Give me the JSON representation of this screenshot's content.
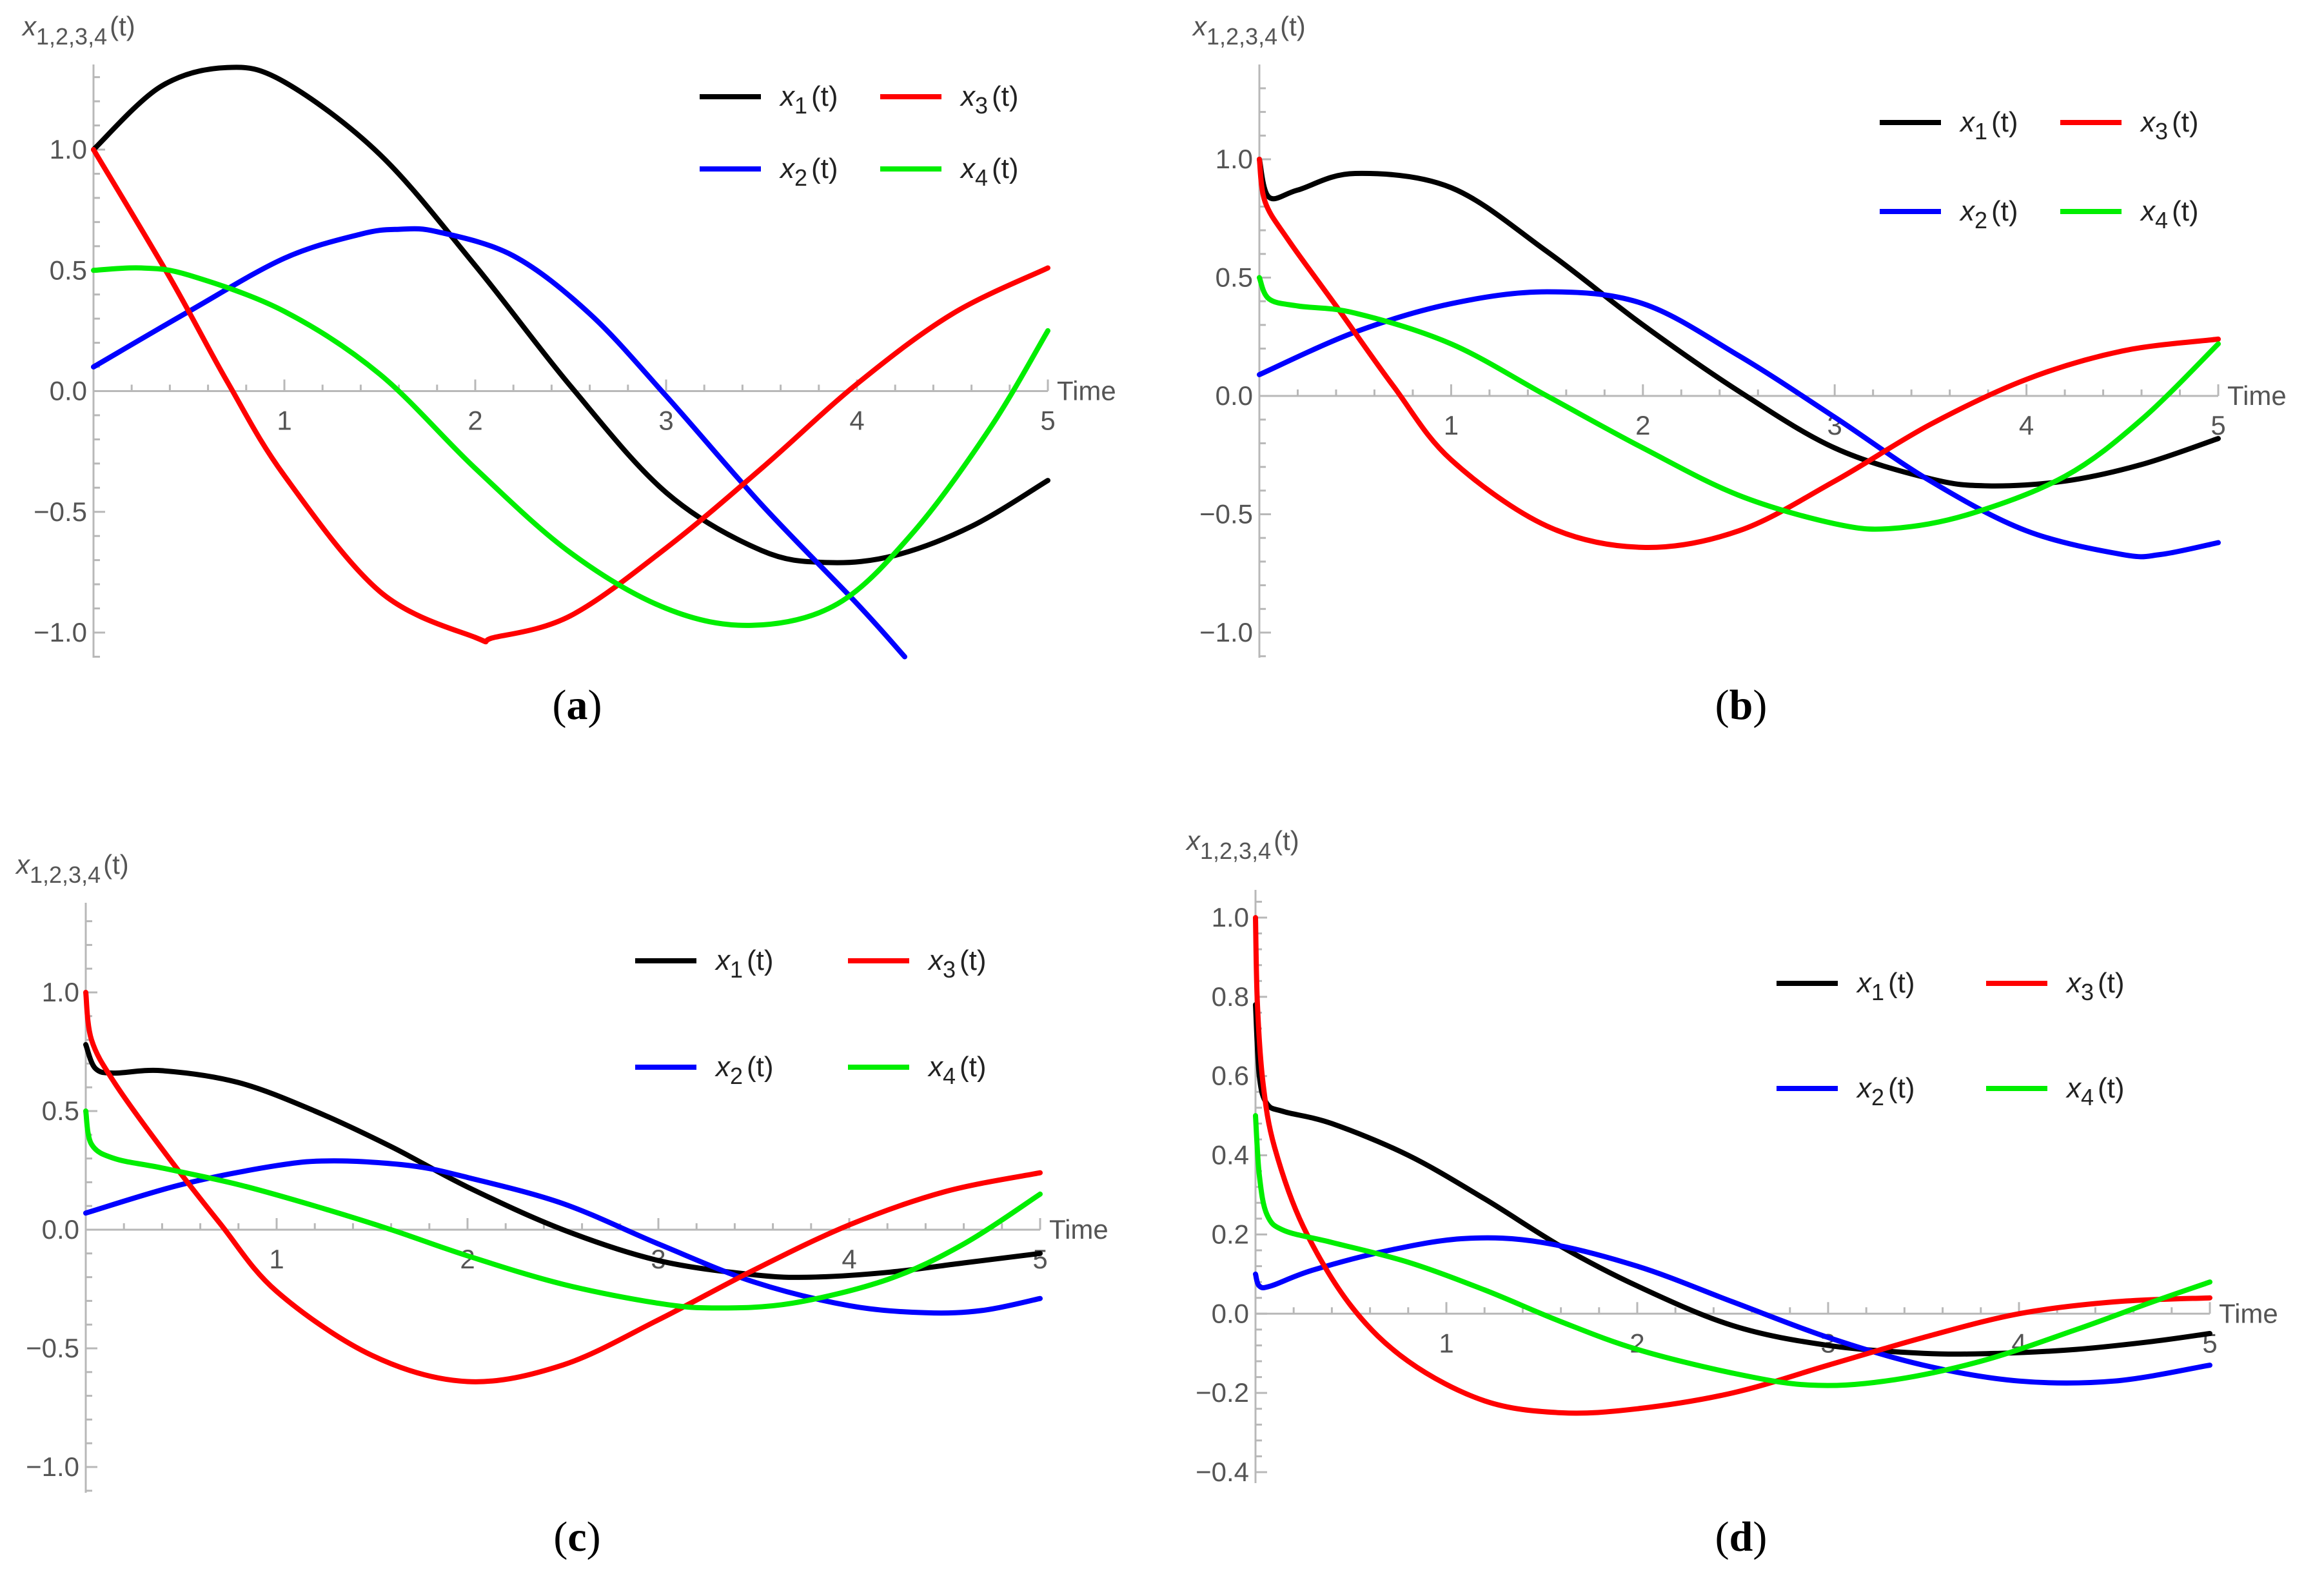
{
  "figure": {
    "description_labels": [
      "(a)",
      "(b)",
      "(c)",
      "(d)"
    ]
  },
  "chart_data": [
    {
      "type": "line",
      "panel_label": "(a)",
      "ylabel": "x1,2,3,4(t)",
      "xlabel": "Time",
      "xlim": [
        0,
        5
      ],
      "ylim": [
        -1.1,
        1.4
      ],
      "xticks": [
        1,
        2,
        3,
        4,
        5
      ],
      "xtick_labels": [
        "1",
        "2",
        "3",
        "4",
        "5"
      ],
      "yticks": [
        -1.0,
        -0.5,
        0.0,
        0.5,
        1.0
      ],
      "ytick_labels": [
        "−1.0",
        "−0.5",
        "0.0",
        "0.5",
        "1.0"
      ],
      "legend": [
        {
          "base": "x",
          "sub": "1",
          "suffix": "(t)",
          "color": "#000000"
        },
        {
          "base": "x",
          "sub": "3",
          "suffix": "(t)",
          "color": "#ff0000"
        },
        {
          "base": "x",
          "sub": "2",
          "suffix": "(t)",
          "color": "#0000ff"
        },
        {
          "base": "x",
          "sub": "4",
          "suffix": "(t)",
          "color": "#00ee00"
        }
      ],
      "series": [
        {
          "name": "x1(t)",
          "color": "#000000",
          "x": [
            0,
            0.35,
            0.7,
            1.0,
            1.5,
            2.0,
            2.5,
            3.0,
            3.5,
            3.85,
            4.2,
            4.6,
            5.0
          ],
          "y": [
            1.0,
            1.26,
            1.34,
            1.28,
            0.98,
            0.52,
            0.02,
            -0.42,
            -0.66,
            -0.71,
            -0.68,
            -0.56,
            -0.37
          ]
        },
        {
          "name": "x2(t)",
          "color": "#0000ff",
          "x": [
            0,
            0.5,
            1.0,
            1.4,
            1.6,
            1.8,
            2.2,
            2.6,
            3.0,
            3.5,
            4.0,
            4.25
          ],
          "y": [
            0.1,
            0.33,
            0.55,
            0.65,
            0.67,
            0.66,
            0.56,
            0.32,
            -0.02,
            -0.47,
            -0.88,
            -1.1
          ]
        },
        {
          "name": "x3(t)",
          "color": "#ff0000",
          "x": [
            0,
            0.4,
            0.7,
            1.0,
            1.5,
            2.0,
            2.1,
            2.5,
            3.0,
            3.5,
            4.0,
            4.5,
            5.0
          ],
          "y": [
            1.0,
            0.47,
            0.04,
            -0.35,
            -0.83,
            -1.02,
            -1.02,
            -0.93,
            -0.65,
            -0.32,
            0.03,
            0.32,
            0.51
          ]
        },
        {
          "name": "x4(t)",
          "color": "#00ee00",
          "x": [
            0,
            0.25,
            0.5,
            1.0,
            1.5,
            2.0,
            2.5,
            3.0,
            3.45,
            3.9,
            4.3,
            4.7,
            5.0
          ],
          "y": [
            0.5,
            0.51,
            0.48,
            0.33,
            0.07,
            -0.32,
            -0.67,
            -0.9,
            -0.97,
            -0.88,
            -0.58,
            -0.15,
            0.25
          ]
        }
      ]
    },
    {
      "type": "line",
      "panel_label": "(b)",
      "ylabel": "x1,2,3,4(t)",
      "xlabel": "Time",
      "xlim": [
        0,
        5
      ],
      "ylim": [
        -1.1,
        1.4
      ],
      "xticks": [
        1,
        2,
        3,
        4,
        5
      ],
      "xtick_labels": [
        "1",
        "2",
        "3",
        "4",
        "5"
      ],
      "yticks": [
        -1.0,
        -0.5,
        0.0,
        0.5,
        1.0
      ],
      "ytick_labels": [
        "−1.0",
        "−0.5",
        "0.0",
        "0.5",
        "1.0"
      ],
      "legend": [
        {
          "base": "x",
          "sub": "1",
          "suffix": "(t)",
          "color": "#000000"
        },
        {
          "base": "x",
          "sub": "3",
          "suffix": "(t)",
          "color": "#ff0000"
        },
        {
          "base": "x",
          "sub": "2",
          "suffix": "(t)",
          "color": "#0000ff"
        },
        {
          "base": "x",
          "sub": "4",
          "suffix": "(t)",
          "color": "#00ee00"
        }
      ],
      "series": [
        {
          "name": "x1(t)",
          "color": "#000000",
          "x": [
            0,
            0.05,
            0.2,
            0.5,
            1.0,
            1.5,
            2.0,
            2.5,
            3.0,
            3.5,
            3.8,
            4.2,
            4.6,
            5.0
          ],
          "y": [
            1.0,
            0.84,
            0.87,
            0.94,
            0.88,
            0.61,
            0.3,
            0.02,
            -0.22,
            -0.35,
            -0.38,
            -0.36,
            -0.29,
            -0.18
          ]
        },
        {
          "name": "x2(t)",
          "color": "#0000ff",
          "x": [
            0,
            0.5,
            1.0,
            1.5,
            2.0,
            2.5,
            3.0,
            3.5,
            4.0,
            4.5,
            4.7,
            5.0
          ],
          "y": [
            0.09,
            0.27,
            0.39,
            0.44,
            0.39,
            0.17,
            -0.09,
            -0.36,
            -0.57,
            -0.67,
            -0.67,
            -0.62
          ]
        },
        {
          "name": "x3(t)",
          "color": "#ff0000",
          "x": [
            0,
            0.03,
            0.15,
            0.4,
            0.7,
            1.0,
            1.5,
            2.0,
            2.5,
            3.0,
            3.5,
            4.0,
            4.5,
            5.0
          ],
          "y": [
            1.0,
            0.82,
            0.66,
            0.38,
            0.04,
            -0.27,
            -0.55,
            -0.64,
            -0.57,
            -0.36,
            -0.12,
            0.07,
            0.19,
            0.24
          ]
        },
        {
          "name": "x4(t)",
          "color": "#00ee00",
          "x": [
            0,
            0.05,
            0.2,
            0.5,
            1.0,
            1.5,
            2.0,
            2.5,
            3.0,
            3.3,
            3.7,
            4.2,
            4.6,
            5.0
          ],
          "y": [
            0.5,
            0.41,
            0.38,
            0.35,
            0.22,
            0.0,
            -0.22,
            -0.42,
            -0.54,
            -0.56,
            -0.5,
            -0.34,
            -0.1,
            0.22
          ]
        }
      ]
    },
    {
      "type": "line",
      "panel_label": "(c)",
      "ylabel": "x1,2,3,4(t)",
      "xlabel": "Time",
      "xlim": [
        0,
        5
      ],
      "ylim": [
        -1.1,
        1.4
      ],
      "xticks": [
        1,
        2,
        3,
        4,
        5
      ],
      "xtick_labels": [
        "1",
        "2",
        "3",
        "4",
        "5"
      ],
      "yticks": [
        -1.0,
        -0.5,
        0.0,
        0.5,
        1.0
      ],
      "ytick_labels": [
        "−1.0",
        "−0.5",
        "0.0",
        "0.5",
        "1.0"
      ],
      "legend": [
        {
          "base": "x",
          "sub": "1",
          "suffix": "(t)",
          "color": "#000000"
        },
        {
          "base": "x",
          "sub": "3",
          "suffix": "(t)",
          "color": "#ff0000"
        },
        {
          "base": "x",
          "sub": "2",
          "suffix": "(t)",
          "color": "#0000ff"
        },
        {
          "base": "x",
          "sub": "4",
          "suffix": "(t)",
          "color": "#00ee00"
        }
      ],
      "series": [
        {
          "name": "x1(t)",
          "color": "#000000",
          "x": [
            0,
            0.05,
            0.15,
            0.4,
            0.8,
            1.2,
            1.6,
            2.0,
            2.5,
            3.0,
            3.5,
            3.8,
            4.2,
            4.6,
            5.0
          ],
          "y": [
            0.78,
            0.68,
            0.66,
            0.67,
            0.62,
            0.5,
            0.35,
            0.18,
            0.0,
            -0.13,
            -0.19,
            -0.2,
            -0.18,
            -0.14,
            -0.1
          ]
        },
        {
          "name": "x2(t)",
          "color": "#0000ff",
          "x": [
            0,
            0.5,
            1.0,
            1.3,
            1.7,
            2.0,
            2.5,
            3.0,
            3.5,
            4.0,
            4.4,
            4.7,
            5.0
          ],
          "y": [
            0.07,
            0.19,
            0.27,
            0.29,
            0.27,
            0.22,
            0.11,
            -0.06,
            -0.22,
            -0.32,
            -0.35,
            -0.34,
            -0.29
          ]
        },
        {
          "name": "x3(t)",
          "color": "#ff0000",
          "x": [
            0,
            0.03,
            0.15,
            0.4,
            0.7,
            1.0,
            1.5,
            2.0,
            2.5,
            3.0,
            3.5,
            4.0,
            4.5,
            5.0
          ],
          "y": [
            1.0,
            0.8,
            0.62,
            0.34,
            0.03,
            -0.26,
            -0.53,
            -0.64,
            -0.57,
            -0.38,
            -0.17,
            0.02,
            0.16,
            0.24
          ]
        },
        {
          "name": "x4(t)",
          "color": "#00ee00",
          "x": [
            0,
            0.03,
            0.15,
            0.4,
            0.8,
            1.2,
            1.6,
            2.0,
            2.5,
            3.0,
            3.3,
            3.7,
            4.2,
            4.6,
            5.0
          ],
          "y": [
            0.5,
            0.36,
            0.3,
            0.26,
            0.19,
            0.1,
            0.0,
            -0.11,
            -0.23,
            -0.31,
            -0.33,
            -0.31,
            -0.21,
            -0.06,
            0.15
          ]
        }
      ]
    },
    {
      "type": "line",
      "panel_label": "(d)",
      "ylabel": "x1,2,3,4(t)",
      "xlabel": "Time",
      "xlim": [
        0,
        5
      ],
      "ylim": [
        -0.4,
        1.1
      ],
      "xticks": [
        1,
        2,
        3,
        4,
        5
      ],
      "xtick_labels": [
        "1",
        "2",
        "3",
        "4",
        "5"
      ],
      "yticks": [
        -0.4,
        -0.2,
        0.0,
        0.2,
        0.4,
        0.6,
        0.8,
        1.0
      ],
      "ytick_labels": [
        "−0.4",
        "−0.2",
        "0.0",
        "0.2",
        "0.4",
        "0.6",
        "0.8",
        "1.0"
      ],
      "legend": [
        {
          "base": "x",
          "sub": "1",
          "suffix": "(t)",
          "color": "#000000"
        },
        {
          "base": "x",
          "sub": "3",
          "suffix": "(t)",
          "color": "#ff0000"
        },
        {
          "base": "x",
          "sub": "2",
          "suffix": "(t)",
          "color": "#0000ff"
        },
        {
          "base": "x",
          "sub": "4",
          "suffix": "(t)",
          "color": "#00ee00"
        }
      ],
      "series": [
        {
          "name": "x1(t)",
          "color": "#000000",
          "x": [
            0,
            0.02,
            0.06,
            0.15,
            0.4,
            0.8,
            1.2,
            1.6,
            2.0,
            2.5,
            3.0,
            3.5,
            3.9,
            4.3,
            4.7,
            5.0
          ],
          "y": [
            0.78,
            0.6,
            0.53,
            0.51,
            0.48,
            0.4,
            0.29,
            0.17,
            0.07,
            -0.03,
            -0.08,
            -0.1,
            -0.1,
            -0.09,
            -0.07,
            -0.05
          ]
        },
        {
          "name": "x2(t)",
          "color": "#0000ff",
          "x": [
            0,
            0.02,
            0.08,
            0.3,
            0.7,
            1.1,
            1.5,
            2.0,
            2.5,
            3.0,
            3.5,
            4.0,
            4.5,
            5.0
          ],
          "y": [
            0.1,
            0.07,
            0.07,
            0.11,
            0.16,
            0.19,
            0.18,
            0.12,
            0.03,
            -0.06,
            -0.13,
            -0.17,
            -0.17,
            -0.13
          ]
        },
        {
          "name": "x3(t)",
          "color": "#ff0000",
          "x": [
            0,
            0.01,
            0.04,
            0.1,
            0.25,
            0.5,
            0.8,
            1.2,
            1.6,
            2.0,
            2.5,
            3.0,
            3.5,
            4.0,
            4.5,
            5.0
          ],
          "y": [
            1.0,
            0.78,
            0.58,
            0.42,
            0.22,
            0.02,
            -0.12,
            -0.22,
            -0.25,
            -0.24,
            -0.2,
            -0.13,
            -0.06,
            0.0,
            0.03,
            0.04
          ]
        },
        {
          "name": "x4(t)",
          "color": "#00ee00",
          "x": [
            0,
            0.02,
            0.06,
            0.15,
            0.4,
            0.8,
            1.2,
            1.6,
            2.0,
            2.5,
            2.9,
            3.3,
            3.8,
            4.3,
            4.7,
            5.0
          ],
          "y": [
            0.5,
            0.35,
            0.25,
            0.21,
            0.18,
            0.13,
            0.06,
            -0.02,
            -0.09,
            -0.15,
            -0.18,
            -0.17,
            -0.12,
            -0.04,
            0.03,
            0.08
          ]
        }
      ]
    }
  ]
}
